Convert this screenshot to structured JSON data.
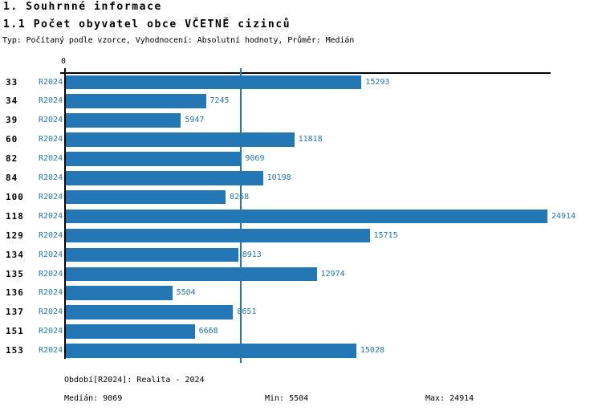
{
  "page": {
    "heading1": "1. Souhrnné informace",
    "heading2": "1.1 Počet obyvatel obce VČETNĚ cizinců",
    "subtitle": "Typ: Počítaný podle vzorce, Vyhodnocení: Absolutní hodnoty, Průměr: Medián"
  },
  "chart_data": {
    "type": "bar",
    "orientation": "horizontal",
    "title": "1.1 Počet obyvatel obce VČETNĚ cizinců",
    "series_label": "R2024",
    "categories": [
      "33",
      "34",
      "39",
      "60",
      "82",
      "84",
      "100",
      "118",
      "129",
      "134",
      "135",
      "136",
      "137",
      "151",
      "153"
    ],
    "values": [
      15293,
      7245,
      5947,
      11818,
      9069,
      10198,
      8268,
      24914,
      15715,
      8913,
      12974,
      5504,
      8651,
      6668,
      15028
    ],
    "axis_origin_label": "0",
    "xlim": [
      0,
      25100
    ],
    "median_value": 9069,
    "min_value": 5504,
    "max_value": 24914,
    "bar_color": "#2277b4",
    "median_line_color": "#2277b4",
    "axis_color": "#000000",
    "label_color": "#2277b4",
    "category_label_color": "#000000",
    "grid": false,
    "legend_position": "none"
  },
  "footer": {
    "period": "Období[R2024]: Realita - 2024",
    "median": "Medián: 9069",
    "min": "Min: 5504",
    "max": "Max: 24914"
  }
}
